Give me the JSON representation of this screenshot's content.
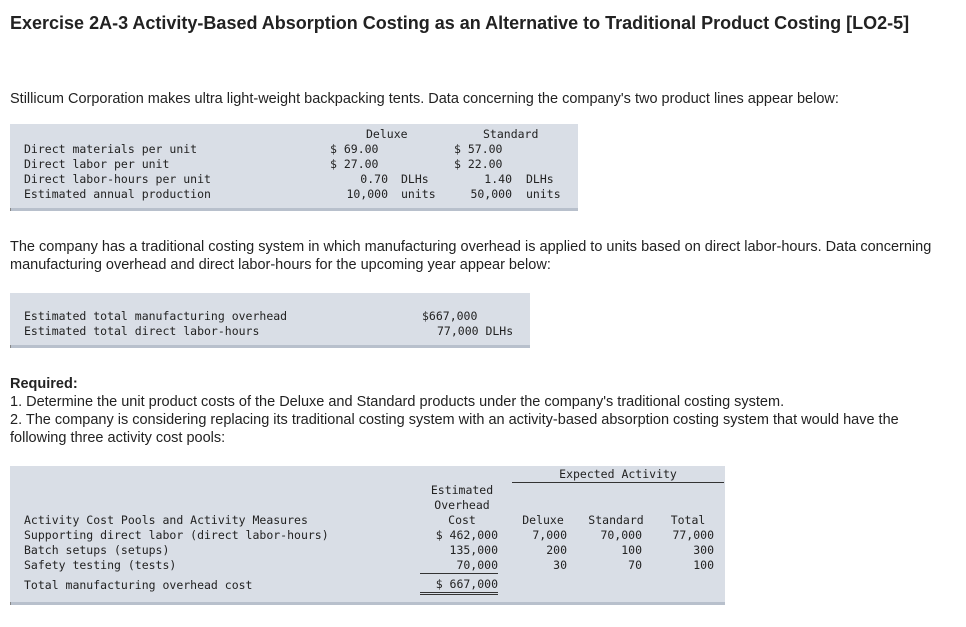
{
  "title": "Exercise 2A-3 Activity-Based Absorption Costing as an Alternative to Traditional Product Costing [LO2-5]",
  "intro": "Stillicum Corporation makes ultra light-weight backpacking tents. Data concerning the company's two product lines appear below:",
  "product_table": {
    "headers": [
      "Deluxe",
      "Standard"
    ],
    "rows": [
      {
        "label": "Direct materials per unit",
        "deluxe": "$ 69.00",
        "deluxe_unit": "",
        "standard": "$ 57.00",
        "standard_unit": ""
      },
      {
        "label": "Direct labor per unit",
        "deluxe": "$ 27.00",
        "deluxe_unit": "",
        "standard": "$ 22.00",
        "standard_unit": ""
      },
      {
        "label": "Direct labor-hours per unit",
        "deluxe": "0.70",
        "deluxe_unit": "DLHs",
        "standard": "1.40",
        "standard_unit": "DLHs"
      },
      {
        "label": "Estimated annual production",
        "deluxe": "10,000",
        "deluxe_unit": "units",
        "standard": "50,000",
        "standard_unit": "units"
      }
    ]
  },
  "traditional_text": "The company has a traditional costing system in which manufacturing overhead is applied to units based on direct labor-hours. Data concerning manufacturing overhead and direct labor-hours for the upcoming year appear below:",
  "overhead_table": {
    "rows": [
      {
        "label": "Estimated total manufacturing overhead",
        "value": "$667,000"
      },
      {
        "label": "Estimated total direct labor-hours",
        "value": "77,000 DLHs"
      }
    ]
  },
  "required": {
    "heading": "Required:",
    "item1": "1. Determine the unit product costs of the Deluxe and Standard products under the company's traditional costing system.",
    "item2": "2. The company is considering replacing its traditional costing system with an activity-based absorption costing system that would have the following three activity cost pools:"
  },
  "activity_table": {
    "group_header": "Expected Activity",
    "cost_header": [
      "Estimated",
      "Overhead",
      "Cost"
    ],
    "columns": {
      "label": "Activity Cost Pools and Activity Measures",
      "deluxe": "Deluxe",
      "standard": "Standard",
      "total": "Total"
    },
    "rows": [
      {
        "label": "Supporting direct labor (direct labor-hours)",
        "cost": "$ 462,000",
        "deluxe": "7,000",
        "standard": "70,000",
        "total": "77,000"
      },
      {
        "label": "Batch setups (setups)",
        "cost": "135,000",
        "deluxe": "200",
        "standard": "100",
        "total": "300"
      },
      {
        "label": "Safety testing (tests)",
        "cost": "70,000",
        "deluxe": "30",
        "standard": "70",
        "total": "100"
      }
    ],
    "total_row": {
      "label": "Total manufacturing overhead cost",
      "cost": "$ 667,000"
    }
  }
}
